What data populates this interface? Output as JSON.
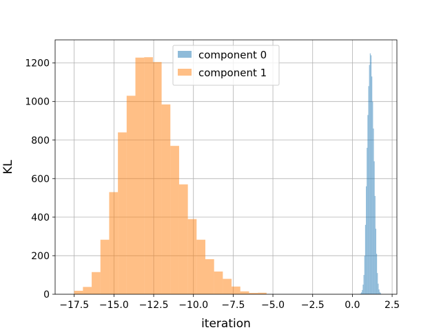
{
  "chart_data": {
    "type": "histogram",
    "title": "",
    "xlabel": "iteration",
    "ylabel": "KL",
    "xlim": [
      -18.7,
      2.8
    ],
    "ylim": [
      0,
      1320
    ],
    "xticks": [
      -17.5,
      -15.0,
      -12.5,
      -10.0,
      -7.5,
      -5.0,
      -2.5,
      0.0,
      2.5
    ],
    "xtick_labels": [
      "−17.5",
      "−15.0",
      "−12.5",
      "−10.0",
      "−7.5",
      "−5.0",
      "−2.5",
      "0.0",
      "2.5"
    ],
    "yticks": [
      0,
      200,
      400,
      600,
      800,
      1000,
      1200
    ],
    "ytick_labels": [
      "0",
      "200",
      "400",
      "600",
      "800",
      "1000",
      "1200"
    ],
    "grid": true,
    "legend_position": "upper-center",
    "series": [
      {
        "name": "component 0",
        "color": "#1f77b4",
        "alpha": 0.5,
        "bin_start": 0.45,
        "bin_width": 0.05,
        "counts": [
          2,
          4,
          10,
          22,
          50,
          100,
          200,
          360,
          560,
          760,
          930,
          1080,
          1190,
          1250,
          1240,
          1130,
          1000,
          860,
          690,
          510,
          340,
          210,
          110,
          55,
          25,
          12,
          6
        ]
      },
      {
        "name": "component 1",
        "color": "#ff7f0e",
        "alpha": 0.5,
        "bin_start": -17.5,
        "bin_width": 0.55,
        "counts": [
          18,
          38,
          115,
          283,
          530,
          840,
          1030,
          1228,
          1230,
          1205,
          985,
          770,
          570,
          390,
          283,
          182,
          118,
          80,
          40,
          15,
          7,
          8
        ]
      }
    ]
  }
}
